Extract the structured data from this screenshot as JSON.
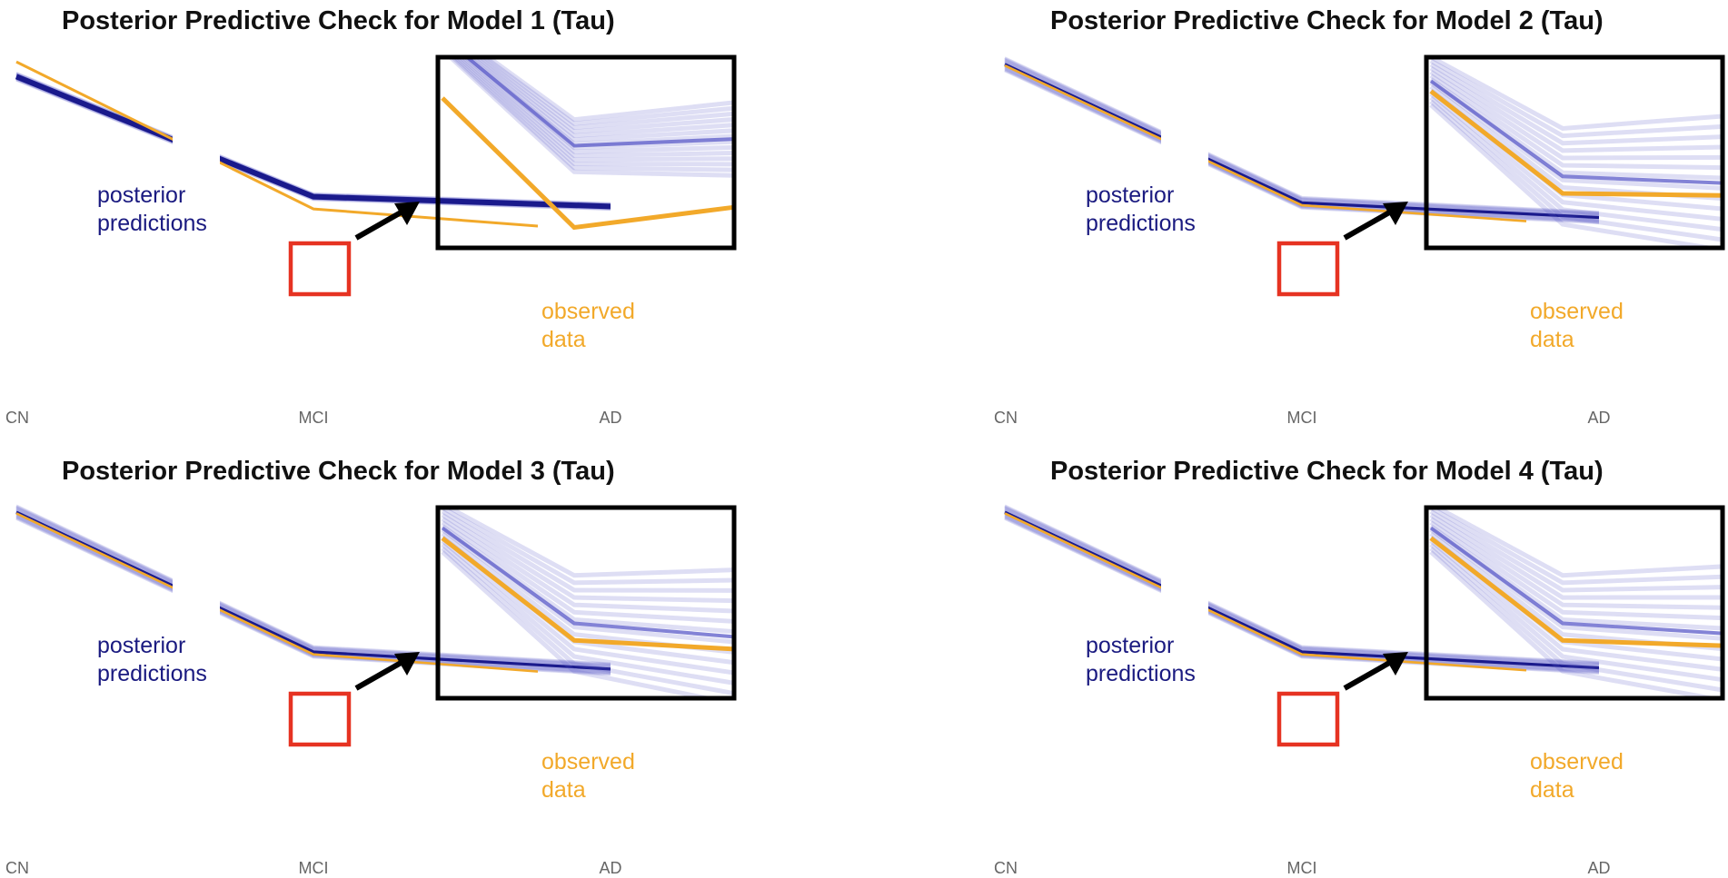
{
  "colors": {
    "prediction": "#1a1a8c",
    "prediction_light": "#5a5ac8",
    "observed": "#f2a92a",
    "highlight_box": "#e63322",
    "inset_frame": "#000000",
    "label_predictions": "#1a1a80",
    "label_observed": "#f2a92a"
  },
  "chart_data": [
    {
      "type": "line",
      "title": "Posterior Predictive Check for Model 1 (Tau)",
      "categories": [
        "CN",
        "MCI",
        "AD"
      ],
      "ylim": [
        0,
        10
      ],
      "grid": false,
      "series": [
        {
          "name": "observed data",
          "values": [
            9.7,
            3.7,
            3.0
          ]
        },
        {
          "name": "posterior predictions",
          "values": [
            9.1,
            4.2,
            3.8
          ],
          "spread": 0.12
        }
      ],
      "annotations": {
        "predictions_label": [
          "posterior",
          "predictions"
        ],
        "observed_label": [
          "observed",
          "data"
        ]
      },
      "inset": {
        "x_range": [
          "MCI",
          "AD"
        ],
        "description_zoom": true
      }
    },
    {
      "type": "line",
      "title": "Posterior Predictive Check for Model 2 (Tau)",
      "categories": [
        "CN",
        "MCI",
        "AD"
      ],
      "ylim": [
        0,
        10
      ],
      "grid": false,
      "series": [
        {
          "name": "observed data",
          "values": [
            9.55,
            3.85,
            3.2
          ]
        },
        {
          "name": "posterior predictions",
          "values": [
            9.6,
            3.95,
            3.35
          ],
          "spread": 0.22
        }
      ],
      "annotations": {
        "predictions_label": [
          "posterior",
          "predictions"
        ],
        "observed_label": [
          "observed",
          "data"
        ]
      },
      "inset": {
        "x_range": [
          "MCI",
          "AD"
        ],
        "description_zoom": true
      }
    },
    {
      "type": "line",
      "title": "Posterior Predictive Check for Model 3 (Tau)",
      "categories": [
        "CN",
        "MCI",
        "AD"
      ],
      "ylim": [
        0,
        10
      ],
      "grid": false,
      "series": [
        {
          "name": "observed data",
          "values": [
            9.65,
            3.9,
            3.2
          ]
        },
        {
          "name": "posterior predictions",
          "values": [
            9.7,
            4.0,
            3.3
          ],
          "spread": 0.22
        }
      ],
      "annotations": {
        "predictions_label": [
          "posterior",
          "predictions"
        ],
        "observed_label": [
          "observed",
          "data"
        ]
      },
      "inset": {
        "x_range": [
          "MCI",
          "AD"
        ],
        "description_zoom": true
      }
    },
    {
      "type": "line",
      "title": "Posterior Predictive Check for Model 4 (Tau)",
      "categories": [
        "CN",
        "MCI",
        "AD"
      ],
      "ylim": [
        0,
        10
      ],
      "grid": false,
      "series": [
        {
          "name": "observed data",
          "values": [
            9.65,
            3.9,
            3.25
          ]
        },
        {
          "name": "posterior predictions",
          "values": [
            9.7,
            4.0,
            3.35
          ],
          "spread": 0.22
        }
      ],
      "annotations": {
        "predictions_label": [
          "posterior",
          "predictions"
        ],
        "observed_label": [
          "observed",
          "data"
        ]
      },
      "inset": {
        "x_range": [
          "MCI",
          "AD"
        ],
        "description_zoom": true
      }
    }
  ]
}
